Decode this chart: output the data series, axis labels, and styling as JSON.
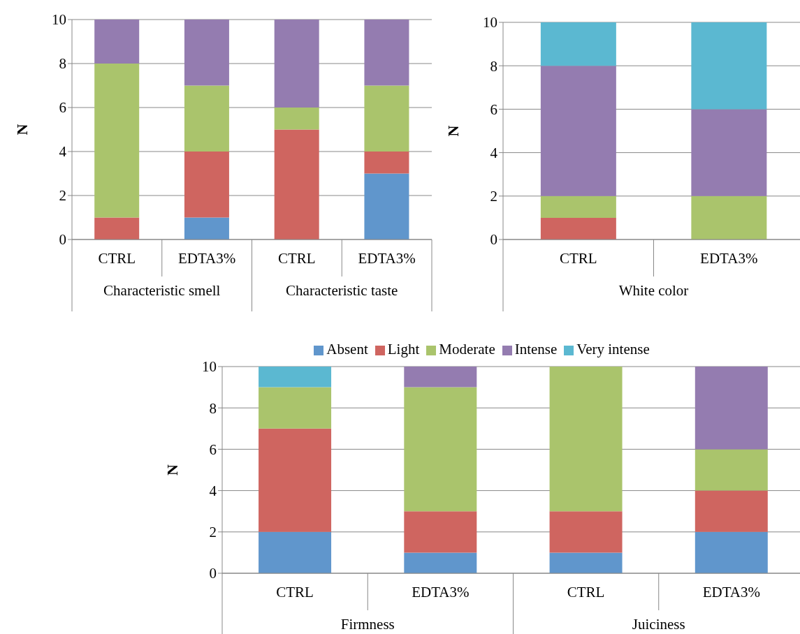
{
  "chart_data": [
    {
      "type": "bar",
      "stacked": true,
      "ylabel": "N",
      "categories": [
        "CTRL",
        "EDTA3%",
        "CTRL",
        "EDTA3%"
      ],
      "annotations": [
        "Characteristic smell",
        "Characteristic taste"
      ],
      "ylim": [
        0,
        10
      ],
      "yticks": [
        0,
        2,
        4,
        6,
        8,
        10
      ],
      "grid": "y",
      "legend": false,
      "series": [
        {
          "color": "#6096cc",
          "values": [
            0,
            1,
            0,
            3
          ]
        },
        {
          "color": "#cf6560",
          "values": [
            1,
            3,
            5,
            1
          ]
        },
        {
          "color": "#aac46c",
          "values": [
            7,
            3,
            1,
            3
          ]
        },
        {
          "color": "#947cb0",
          "values": [
            2,
            3,
            4,
            3
          ]
        }
      ]
    },
    {
      "type": "bar",
      "stacked": true,
      "ylabel": "N",
      "categories": [
        "CTRL",
        "EDTA3%"
      ],
      "annotations": [
        "White color"
      ],
      "ylim": [
        0,
        10
      ],
      "yticks": [
        0,
        2,
        4,
        6,
        8,
        10
      ],
      "grid": "y",
      "legend": false,
      "series": [
        {
          "color": "#cf6560",
          "values": [
            1,
            0
          ]
        },
        {
          "color": "#aac46c",
          "values": [
            1,
            2
          ]
        },
        {
          "color": "#947cb0",
          "values": [
            6,
            4
          ]
        },
        {
          "color": "#5bb8d1",
          "values": [
            2,
            4
          ]
        }
      ]
    },
    {
      "type": "bar",
      "stacked": true,
      "ylabel": "N",
      "categories": [
        "CTRL",
        "EDTA3%",
        "CTRL",
        "EDTA3%"
      ],
      "annotations": [
        "Firmness",
        "Juiciness"
      ],
      "ylim": [
        0,
        10
      ],
      "yticks": [
        0,
        2,
        4,
        6,
        8,
        10
      ],
      "grid": "y",
      "legend": "top",
      "series": [
        {
          "name": "Absent",
          "color": "#6096cc",
          "values": [
            2,
            1,
            1,
            2
          ]
        },
        {
          "name": "Light",
          "color": "#cf6560",
          "values": [
            5,
            2,
            2,
            2
          ]
        },
        {
          "name": "Moderate",
          "color": "#aac46c",
          "values": [
            2,
            6,
            7,
            2
          ]
        },
        {
          "name": "Intense",
          "color": "#947cb0",
          "values": [
            0,
            1,
            0,
            4
          ]
        },
        {
          "name": "Very intense",
          "color": "#5bb8d1",
          "values": [
            1,
            0,
            0,
            0
          ]
        }
      ]
    }
  ]
}
